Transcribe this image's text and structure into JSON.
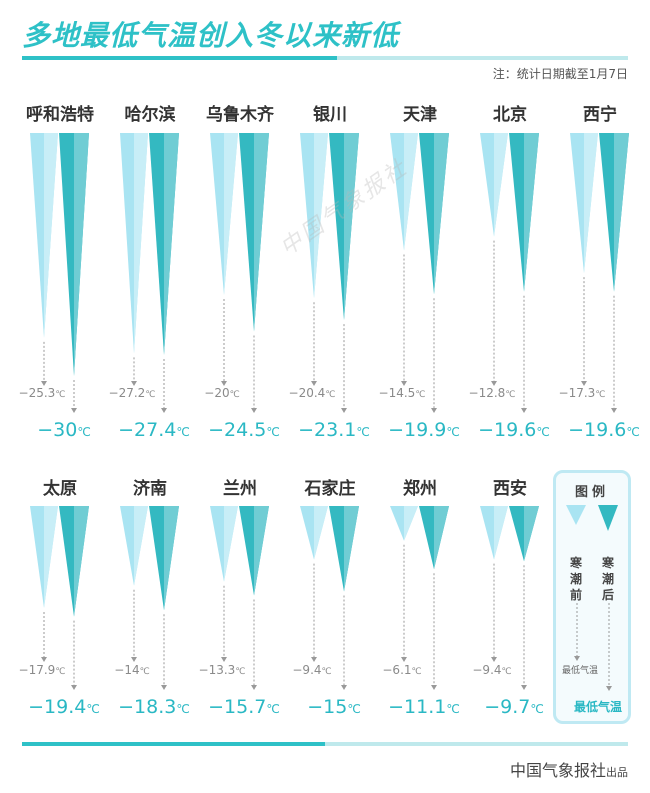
{
  "title": "多地最低气温创入冬以来新低",
  "note": "注：统计日期截至1月7日",
  "source": {
    "main": "中国气象报社",
    "suffix": "出品"
  },
  "watermark": "中国气象报社",
  "legend": {
    "title": "图例",
    "before_label": "寒潮前",
    "after_label": "寒潮后",
    "min_temp_small": "最低气温",
    "min_temp_big": "最低气温"
  },
  "colors": {
    "before": "#a9e4f2",
    "after": "#34b9c1",
    "accent": "#2ec1c7"
  },
  "chart_data": {
    "type": "bar",
    "orientation": "downward-triangles",
    "unit": "℃",
    "series": [
      {
        "name": "寒潮前",
        "values": [
          -25.3,
          -27.2,
          -20,
          -20.4,
          -14.5,
          -12.8,
          -17.3,
          -17.9,
          -14,
          -13.3,
          -9.4,
          -6.1,
          -9.4
        ]
      },
      {
        "name": "寒潮后",
        "values": [
          -30,
          -27.4,
          -24.5,
          -23.1,
          -19.9,
          -19.6,
          -19.6,
          -19.4,
          -18.3,
          -15.7,
          -15,
          -11.1,
          -9.7
        ]
      }
    ],
    "categories": [
      "呼和浩特",
      "哈尔滨",
      "乌鲁木齐",
      "银川",
      "天津",
      "北京",
      "西宁",
      "太原",
      "济南",
      "兰州",
      "石家庄",
      "郑州",
      "西安"
    ]
  }
}
